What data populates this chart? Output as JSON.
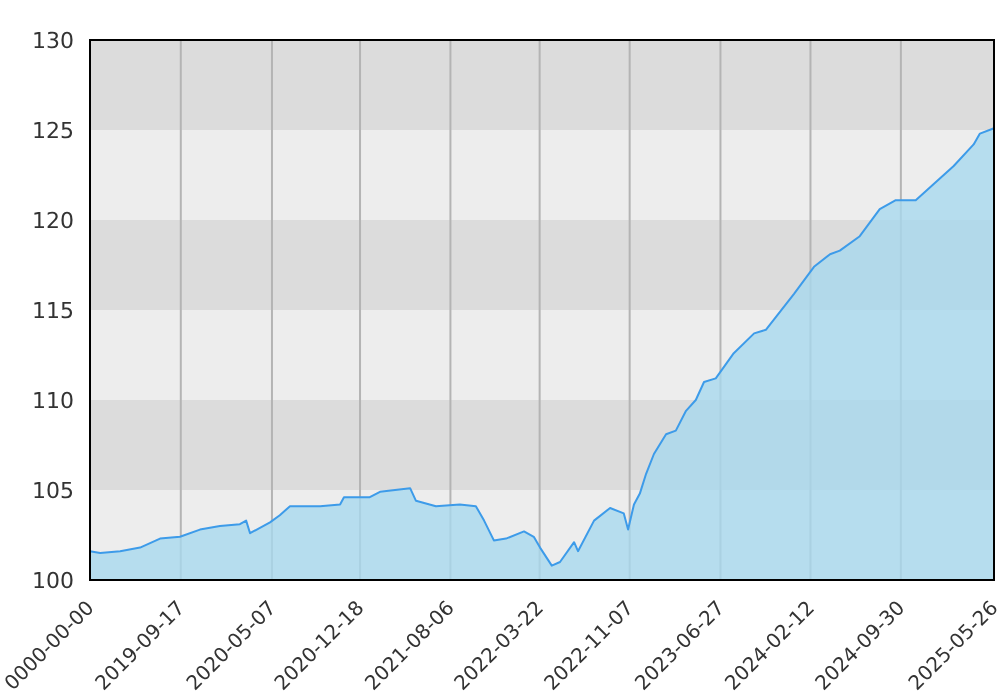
{
  "chart_data": {
    "type": "area",
    "x": [
      "2019-01-28",
      "2019-02-23",
      "2019-04-15",
      "2019-06-05",
      "2019-07-26",
      "2019-09-15",
      "2019-11-05",
      "2019-12-26",
      "2020-02-15",
      "2020-03-02",
      "2020-03-12",
      "2020-05-02",
      "2020-05-27",
      "2020-06-22",
      "2020-09-07",
      "2020-10-28",
      "2020-11-07",
      "2021-01-12",
      "2021-02-07",
      "2021-04-25",
      "2021-05-10",
      "2021-06-30",
      "2021-08-30",
      "2021-10-10",
      "2021-10-31",
      "2021-11-25",
      "2021-12-26",
      "2022-02-10",
      "2022-03-07",
      "2022-03-23",
      "2022-04-22",
      "2022-05-13",
      "2022-06-18",
      "2022-06-28",
      "2022-08-08",
      "2022-09-18",
      "2022-10-23",
      "2022-11-03",
      "2022-11-18",
      "2022-12-03",
      "2022-12-19",
      "2023-01-08",
      "2023-02-08",
      "2023-03-05",
      "2023-03-31",
      "2023-04-25",
      "2023-05-16",
      "2023-06-15",
      "2023-07-31",
      "2023-09-21",
      "2023-10-21",
      "2024-01-01",
      "2024-02-21",
      "2024-04-02",
      "2024-04-27",
      "2024-06-17",
      "2024-08-07",
      "2024-09-17",
      "2024-11-07",
      "2024-12-23",
      "2025-02-12",
      "2025-04-04",
      "2025-04-20",
      "2025-05-26"
    ],
    "series": [
      {
        "color": "#3d9be9",
        "values": [
          101.6,
          101.5,
          101.6,
          101.8,
          102.3,
          102.4,
          102.8,
          103.0,
          103.1,
          103.3,
          102.6,
          103.2,
          103.6,
          104.1,
          104.1,
          104.2,
          104.6,
          104.6,
          104.9,
          105.1,
          104.4,
          104.1,
          104.2,
          104.1,
          103.3,
          102.2,
          102.3,
          102.7,
          102.4,
          101.8,
          100.8,
          101.0,
          102.1,
          101.6,
          103.3,
          104.0,
          103.7,
          102.8,
          104.2,
          104.8,
          105.9,
          107.0,
          108.1,
          108.3,
          109.4,
          110.0,
          111.0,
          111.2,
          112.6,
          113.7,
          113.9,
          115.9,
          117.4,
          118.1,
          118.3,
          119.1,
          120.6,
          121.1,
          121.1,
          122.0,
          123.0,
          124.2,
          124.8,
          125.1
        ]
      }
    ],
    "xlim": [
      "2019-01-28",
      "2025-05-26"
    ],
    "xticks": [
      {
        "value": "2019-01-28",
        "label": "0000-00-00"
      },
      {
        "value": "2019-09-17",
        "label": "2019-09-17"
      },
      {
        "value": "2020-05-07",
        "label": "2020-05-07"
      },
      {
        "value": "2020-12-18",
        "label": "2020-12-18"
      },
      {
        "value": "2021-08-06",
        "label": "2021-08-06"
      },
      {
        "value": "2022-03-22",
        "label": "2022-03-22"
      },
      {
        "value": "2022-11-07",
        "label": "2022-11-07"
      },
      {
        "value": "2023-06-27",
        "label": "2023-06-27"
      },
      {
        "value": "2024-02-12",
        "label": "2024-02-12"
      },
      {
        "value": "2024-09-30",
        "label": "2024-09-30"
      },
      {
        "value": "2025-05-26",
        "label": "2025-05-26"
      }
    ],
    "ylim": [
      100,
      130
    ],
    "yticks": [
      100,
      105,
      110,
      115,
      120,
      125,
      130
    ],
    "grid": true
  }
}
